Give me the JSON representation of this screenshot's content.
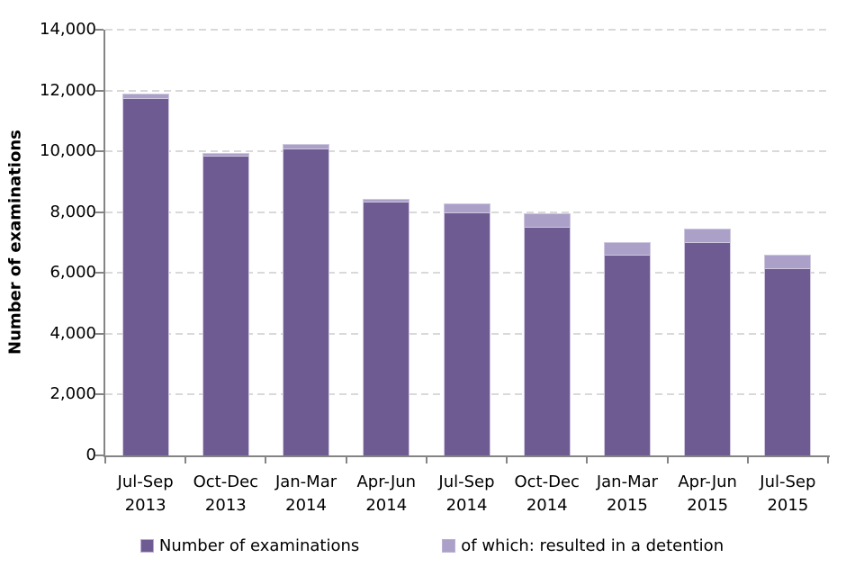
{
  "chart_data": {
    "type": "bar",
    "stacked": true,
    "title": "",
    "xlabel": "",
    "ylabel": "Number of examinations",
    "ylim": [
      0,
      14000
    ],
    "ytick_interval": 2000,
    "ytick_labels": [
      "0",
      "2,000",
      "4,000",
      "6,000",
      "8,000",
      "10,000",
      "12,000",
      "14,000"
    ],
    "grid": "horizontal-dashed",
    "legend_position": "bottom-center",
    "categories": [
      "Jul-Sep 2013",
      "Oct-Dec 2013",
      "Jan-Mar 2014",
      "Apr-Jun 2014",
      "Jul-Sep 2014",
      "Oct-Dec 2014",
      "Jan-Mar 2015",
      "Apr-Jun 2015",
      "Jul-Sep 2015"
    ],
    "series": [
      {
        "name": "Number of examinations",
        "color": "#6e5b92",
        "role": "total-bar-height",
        "values": [
          11900,
          9950,
          10250,
          8450,
          8300,
          7950,
          7000,
          7450,
          6600
        ]
      },
      {
        "name": "of which: resulted in a detention",
        "color": "#aba0c7",
        "role": "light-cap-at-top-of-bar",
        "values": [
          150,
          100,
          150,
          100,
          300,
          450,
          400,
          450,
          450
        ]
      }
    ]
  },
  "colors": {
    "bar_dark": "#6e5b92",
    "bar_light": "#aba0c7",
    "bar_border": "#cfc8e0",
    "axis": "#848484",
    "gridline": "#d9d9d9",
    "text": "#000000"
  }
}
